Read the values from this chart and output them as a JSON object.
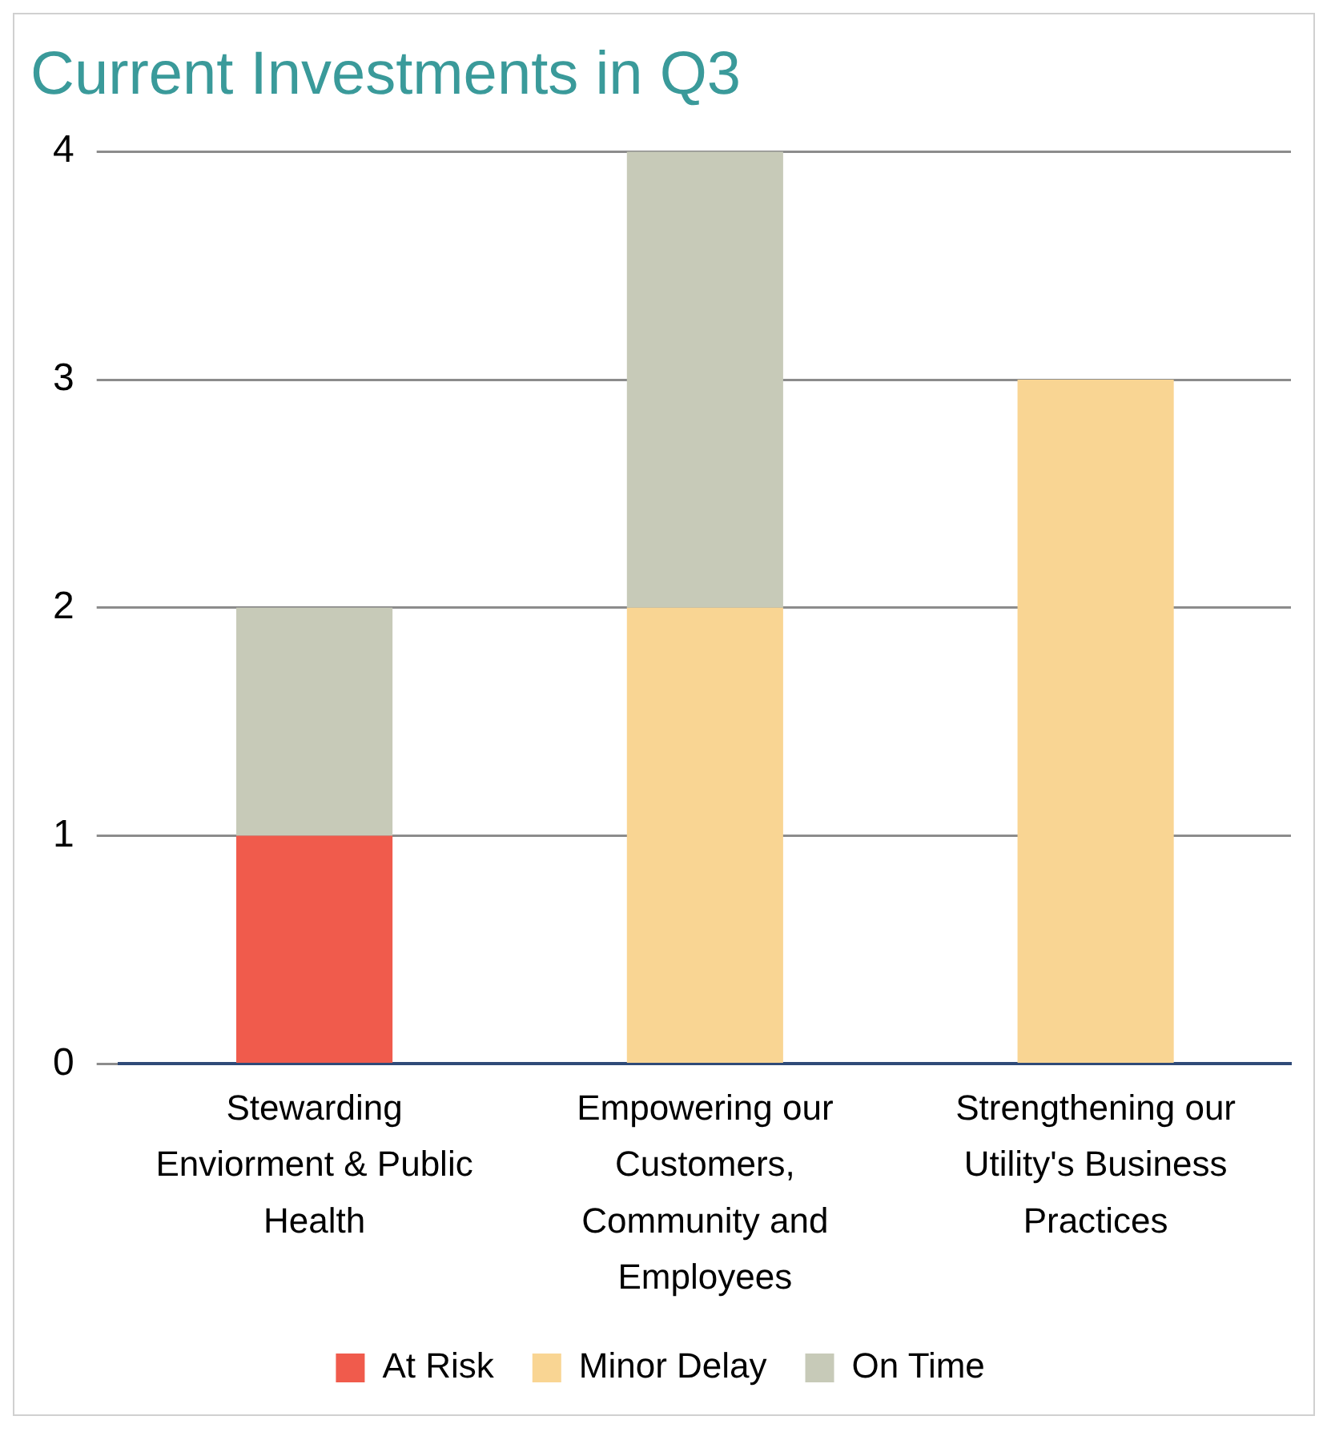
{
  "chart_data": {
    "type": "bar",
    "title": "Current Investments in Q3",
    "categories": [
      "Stewarding Enviorment & Public Health",
      "Empowering our Customers, Community and Employees",
      "Strengthening our Utility's Business Practices"
    ],
    "series": [
      {
        "name": "At Risk",
        "color": "#f05b4c",
        "values": [
          1,
          0,
          0
        ]
      },
      {
        "name": "Minor Delay",
        "color": "#f9d593",
        "values": [
          0,
          2,
          3
        ]
      },
      {
        "name": "On Time",
        "color": "#c7cab8",
        "values": [
          1,
          2,
          0
        ]
      }
    ],
    "stacked": true,
    "ylim": [
      0,
      4
    ],
    "yticks": [
      0,
      1,
      2,
      3,
      4
    ],
    "grid": "y",
    "legend": "bottom"
  }
}
